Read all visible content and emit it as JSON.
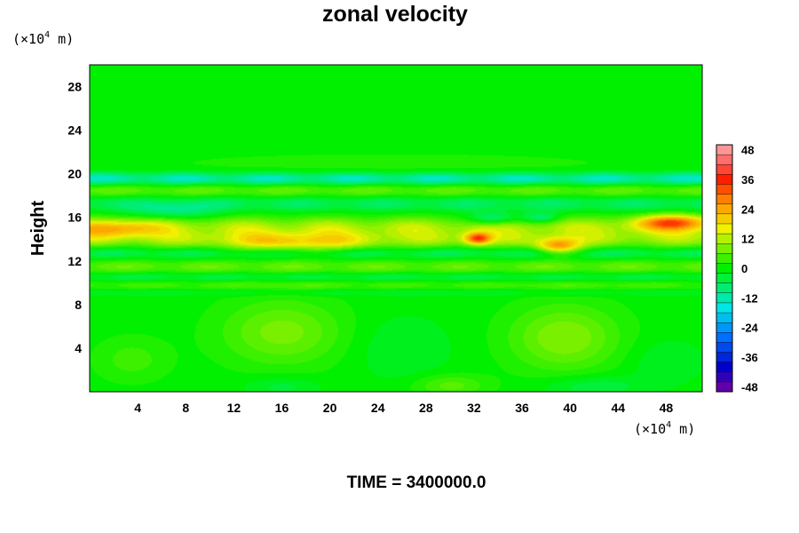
{
  "chart_data": {
    "type": "heatmap",
    "title": "zonal velocity",
    "ylabel": "Height",
    "xlabel": "",
    "y_unit": {
      "prefix": "(×10",
      "exponent": "4",
      "suffix": " m)"
    },
    "x_unit": {
      "prefix": "(×10",
      "exponent": "4",
      "suffix": " m)"
    },
    "xlim": [
      0,
      51
    ],
    "ylim": [
      0,
      30
    ],
    "x_ticks": [
      4,
      8,
      12,
      16,
      20,
      24,
      28,
      32,
      36,
      40,
      44,
      48
    ],
    "y_ticks": [
      4,
      8,
      12,
      16,
      20,
      24,
      28
    ],
    "colorbar": {
      "min": -50,
      "max": 50,
      "step": 4,
      "tick_values": [
        48,
        36,
        24,
        12,
        0,
        -12,
        -24,
        -36,
        -48
      ]
    },
    "bands": [
      {
        "y": 19.6,
        "width": 0.55,
        "value": -12
      },
      {
        "y": 18.5,
        "width": 0.6,
        "value": 6
      },
      {
        "y": 17.3,
        "width": 0.7,
        "value": -6
      },
      {
        "y": 15.2,
        "width": 0.9,
        "value": 10
      },
      {
        "y": 14.0,
        "width": 0.9,
        "value": 9
      },
      {
        "y": 12.8,
        "width": 0.6,
        "value": -6
      },
      {
        "y": 11.5,
        "width": 0.7,
        "value": 6
      },
      {
        "y": 10.6,
        "width": 0.45,
        "value": -5
      },
      {
        "y": 9.8,
        "width": 0.5,
        "value": 4
      },
      {
        "y": 9.2,
        "width": 0.35,
        "value": -3
      }
    ],
    "blobs": [
      {
        "x": 48.5,
        "y": 15.6,
        "rx": 3.0,
        "ry": 0.7,
        "value": 24
      },
      {
        "x": 32.3,
        "y": 14.1,
        "rx": 1.1,
        "ry": 0.55,
        "value": 26
      },
      {
        "x": 39.0,
        "y": 13.4,
        "rx": 1.8,
        "ry": 0.7,
        "value": 22
      },
      {
        "x": 2.0,
        "y": 15.0,
        "rx": 3.5,
        "ry": 0.8,
        "value": 14
      },
      {
        "x": 17.0,
        "y": 13.7,
        "rx": 6.0,
        "ry": 0.9,
        "value": 12
      },
      {
        "x": 33.5,
        "y": 15.9,
        "rx": 2.0,
        "ry": 0.6,
        "value": -12
      },
      {
        "x": 37.5,
        "y": 16.0,
        "rx": 1.5,
        "ry": 0.5,
        "value": -10
      },
      {
        "x": 7.0,
        "y": 16.6,
        "rx": 3.5,
        "ry": 0.7,
        "value": -8
      },
      {
        "x": 16.0,
        "y": 5.5,
        "rx": 5.0,
        "ry": 3.0,
        "value": 8
      },
      {
        "x": 39.5,
        "y": 5.0,
        "rx": 4.5,
        "ry": 3.0,
        "value": 9
      },
      {
        "x": 26.0,
        "y": 4.0,
        "rx": 4.0,
        "ry": 3.0,
        "value": -3
      },
      {
        "x": 3.5,
        "y": 3.0,
        "rx": 3.0,
        "ry": 2.0,
        "value": 4
      },
      {
        "x": 30.0,
        "y": 0.6,
        "rx": 3.0,
        "ry": 1.0,
        "value": 6
      },
      {
        "x": 16.0,
        "y": 0.5,
        "rx": 3.0,
        "ry": 0.9,
        "value": -4
      },
      {
        "x": 42.0,
        "y": 0.5,
        "rx": 4.0,
        "ry": 1.0,
        "value": -5
      },
      {
        "x": 48.0,
        "y": 2.8,
        "rx": 3.0,
        "ry": 2.0,
        "value": -3
      },
      {
        "x": 25.0,
        "y": 21.0,
        "rx": 20.0,
        "ry": 1.0,
        "value": 2
      }
    ]
  },
  "footer": {
    "label": "TIME = 3400000.0"
  }
}
